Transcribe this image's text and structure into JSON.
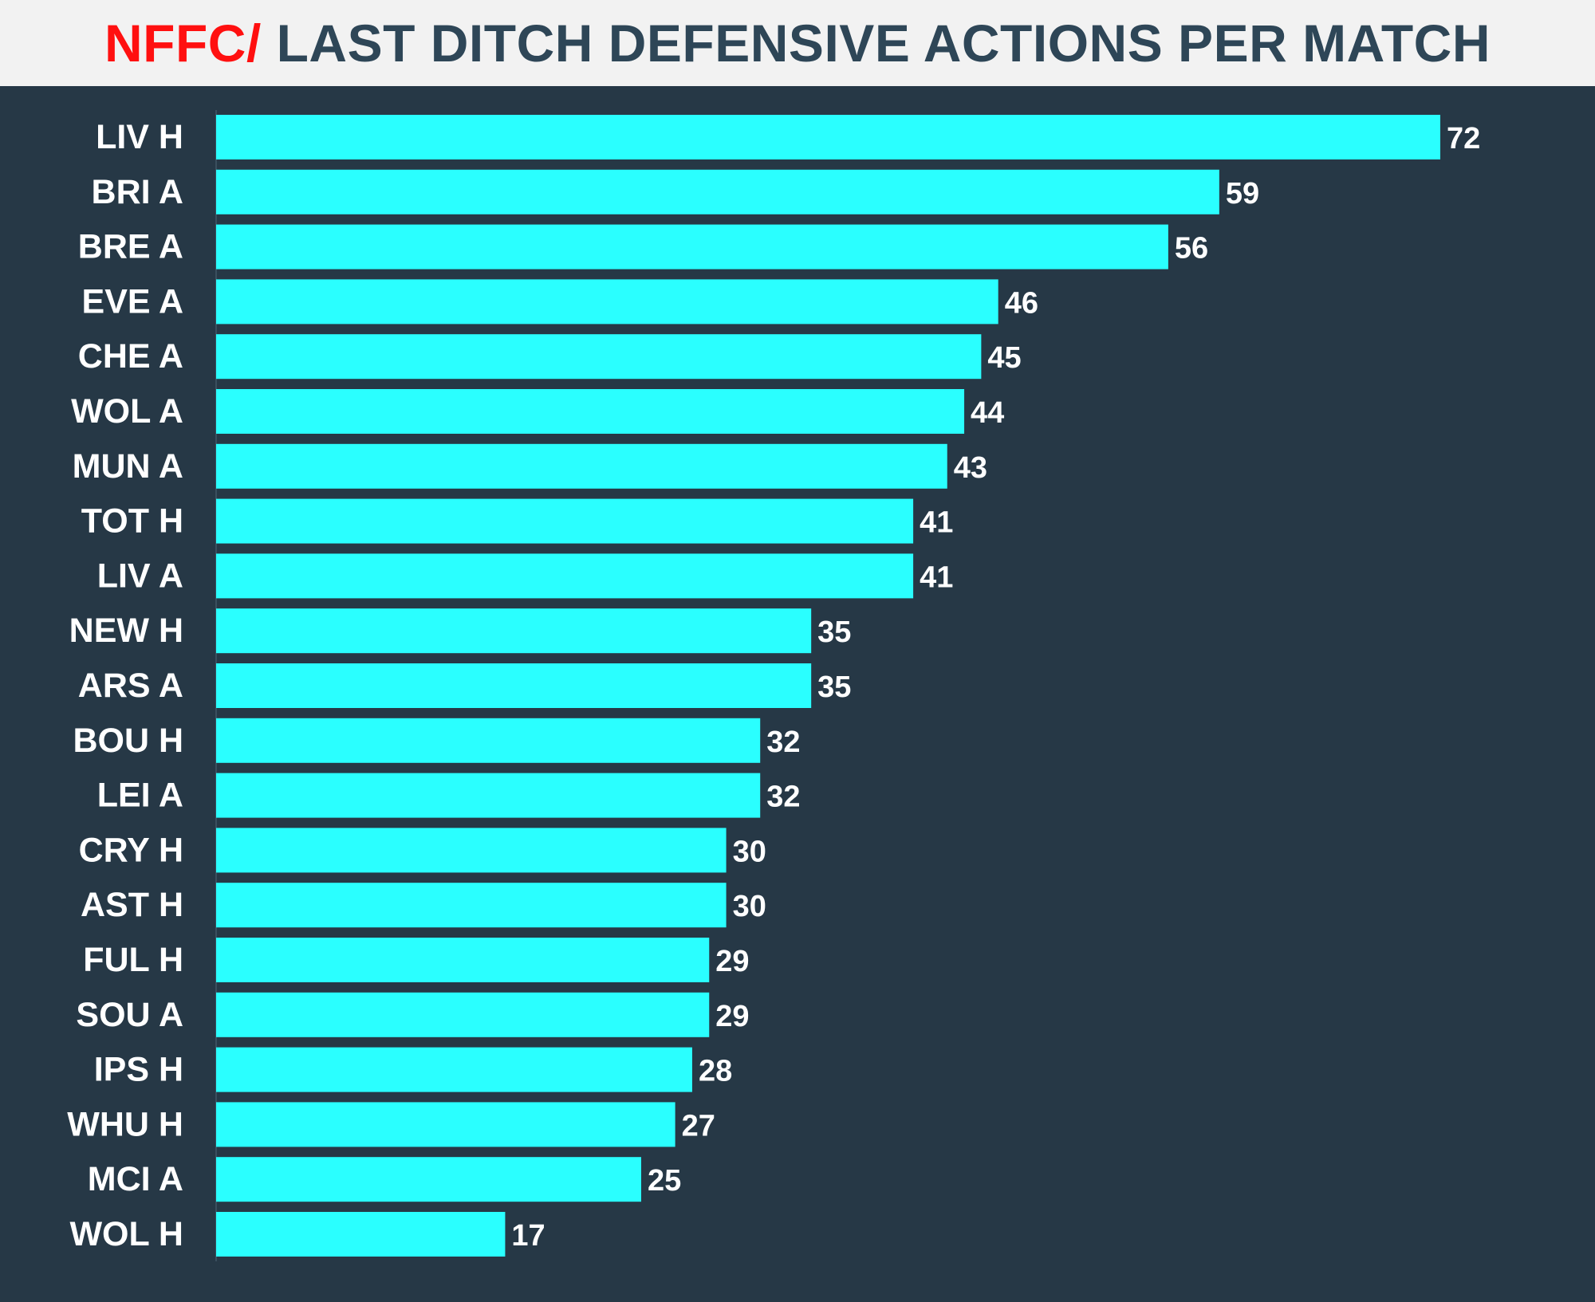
{
  "title": {
    "accent": "NFFC/",
    "main": " LAST DITCH DEFENSIVE ACTIONS PER MATCH"
  },
  "colors": {
    "background": "#263846",
    "bar": "#2affff",
    "title_accent": "#ff1010",
    "title_main": "#2e4657",
    "title_bar": "#f2f2f2"
  },
  "chart_data": {
    "type": "bar",
    "orientation": "horizontal",
    "categories": [
      "LIV H",
      "BRI A",
      "BRE A",
      "EVE A",
      "CHE A",
      "WOL A",
      "MUN A",
      "TOT H",
      "LIV A",
      "NEW H",
      "ARS A",
      "BOU H",
      "LEI A",
      "CRY H",
      "AST H",
      "FUL H",
      "SOU A",
      "IPS H",
      "WHU H",
      "MCI A",
      "WOL H"
    ],
    "values": [
      72,
      59,
      56,
      46,
      45,
      44,
      43,
      41,
      41,
      35,
      35,
      32,
      32,
      30,
      30,
      29,
      29,
      28,
      27,
      25,
      17
    ],
    "title": "NFFC/ LAST DITCH DEFENSIVE ACTIONS PER MATCH",
    "xlabel": "",
    "ylabel": "",
    "xlim": [
      0,
      72
    ],
    "grid": false,
    "legend": "none",
    "data_labels": true
  }
}
